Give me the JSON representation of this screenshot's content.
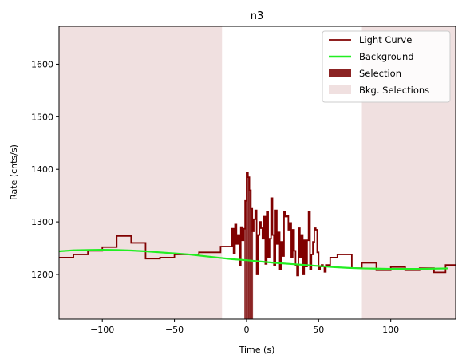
{
  "chart_data": {
    "type": "line",
    "title": "n3",
    "xlabel": "Time (s)",
    "ylabel": "Rate (cnts/s)",
    "xlim": [
      -130,
      145
    ],
    "ylim": [
      1115,
      1672
    ],
    "xticks": [
      -100,
      -50,
      0,
      50,
      100
    ],
    "yticks": [
      1200,
      1300,
      1400,
      1500,
      1600
    ],
    "grid": false,
    "legend_position": "top-right",
    "legend": [
      {
        "label": "Light Curve",
        "kind": "line",
        "color": "#800000"
      },
      {
        "label": "Background",
        "kind": "line",
        "color": "#22ee22"
      },
      {
        "label": "Selection",
        "kind": "patch",
        "color": "#8b2323"
      },
      {
        "label": "Bkg. Selections",
        "kind": "patch",
        "color": "#f0e0e0"
      }
    ],
    "selection": {
      "x": [
        -1.5,
        4.5
      ],
      "color": "#8b2323"
    },
    "bkg_selections": [
      {
        "x": [
          -130,
          -17
        ],
        "color": "#f0e0e0"
      },
      {
        "x": [
          80,
          145
        ],
        "color": "#f0e0e0"
      }
    ],
    "light_curve": {
      "color": "#800000",
      "edges": [
        -130,
        -120,
        -110,
        -100,
        -90,
        -80,
        -70,
        -60,
        -50,
        -40,
        -33,
        -18,
        -10,
        -9,
        -8,
        -7,
        -6,
        -5,
        -4,
        -3,
        -2,
        -1,
        0,
        1,
        2,
        3,
        4,
        5,
        6,
        7,
        8,
        9,
        10,
        11,
        12,
        13,
        14,
        15,
        16,
        17,
        18,
        19,
        20,
        21,
        22,
        23,
        24,
        25,
        26,
        27,
        28,
        29,
        30,
        31,
        32,
        33,
        34,
        35,
        36,
        37,
        38,
        39,
        40,
        41,
        42,
        43,
        44,
        45,
        46,
        47,
        48,
        49,
        50,
        51,
        52,
        53,
        54,
        55,
        58,
        63,
        73,
        80,
        90,
        100,
        110,
        120,
        130,
        138,
        145
      ],
      "values": [
        1232,
        1238,
        1245,
        1252,
        1273,
        1260,
        1230,
        1232,
        1238,
        1238,
        1242,
        1253,
        1287,
        1240,
        1295,
        1258,
        1275,
        1218,
        1290,
        1265,
        1287,
        1340,
        1393,
        1385,
        1360,
        1325,
        1282,
        1305,
        1322,
        1200,
        1275,
        1300,
        1288,
        1268,
        1310,
        1220,
        1320,
        1232,
        1268,
        1345,
        1275,
        1218,
        1322,
        1258,
        1280,
        1210,
        1262,
        1235,
        1320,
        1310,
        1312,
        1285,
        1298,
        1232,
        1285,
        1245,
        1218,
        1198,
        1288,
        1232,
        1275,
        1200,
        1265,
        1215,
        1265,
        1320,
        1210,
        1238,
        1262,
        1288,
        1285,
        1242,
        1210,
        1215,
        1218,
        1215,
        1205,
        1218,
        1232,
        1238,
        1212,
        1222,
        1208,
        1214,
        1208,
        1212,
        1204,
        1218
      ]
    },
    "background": {
      "color": "#22ee22",
      "x": [
        -130,
        -120,
        -110,
        -100,
        -90,
        -80,
        -70,
        -60,
        -50,
        -40,
        -30,
        -20,
        -10,
        0,
        10,
        20,
        30,
        40,
        50,
        60,
        70,
        80,
        90,
        100,
        110,
        120,
        130,
        140
      ],
      "y": [
        1244,
        1246,
        1246.5,
        1246.8,
        1246.5,
        1245.5,
        1244,
        1242,
        1240,
        1238,
        1235,
        1232,
        1229,
        1227,
        1224.5,
        1222,
        1220,
        1218,
        1216,
        1214,
        1212.5,
        1211.5,
        1211,
        1210.5,
        1210.5,
        1210.5,
        1211,
        1211.5
      ]
    }
  }
}
